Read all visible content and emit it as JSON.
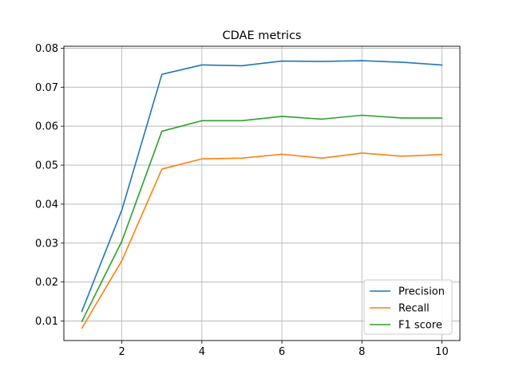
{
  "chart_data": {
    "type": "line",
    "title": "CDAE metrics",
    "xlabel": "",
    "ylabel": "",
    "xlim": [
      0.55,
      10.45
    ],
    "ylim": [
      0.005,
      0.0805
    ],
    "xticks": [
      2,
      4,
      6,
      8,
      10
    ],
    "xtick_labels": [
      "2",
      "4",
      "6",
      "8",
      "10"
    ],
    "yticks": [
      0.01,
      0.02,
      0.03,
      0.04,
      0.05,
      0.06,
      0.07,
      0.08
    ],
    "ytick_labels": [
      "0.01",
      "0.02",
      "0.03",
      "0.04",
      "0.05",
      "0.06",
      "0.07",
      "0.08"
    ],
    "grid": true,
    "legend_position": "lower-right",
    "x": [
      1,
      2,
      3,
      4,
      5,
      6,
      7,
      8,
      9,
      10
    ],
    "series": [
      {
        "name": "Precision",
        "color": "#1f77b4",
        "values": [
          0.0125,
          0.0385,
          0.0733,
          0.0757,
          0.0755,
          0.0767,
          0.0766,
          0.0768,
          0.0764,
          0.0757
        ]
      },
      {
        "name": "Recall",
        "color": "#ff7f0e",
        "values": [
          0.0082,
          0.0255,
          0.049,
          0.0516,
          0.0518,
          0.0528,
          0.0518,
          0.0531,
          0.0523,
          0.0527
        ]
      },
      {
        "name": "F1 score",
        "color": "#2ca02c",
        "values": [
          0.0099,
          0.0305,
          0.0587,
          0.0614,
          0.0614,
          0.0625,
          0.0618,
          0.0628,
          0.0621,
          0.0621
        ]
      }
    ]
  }
}
